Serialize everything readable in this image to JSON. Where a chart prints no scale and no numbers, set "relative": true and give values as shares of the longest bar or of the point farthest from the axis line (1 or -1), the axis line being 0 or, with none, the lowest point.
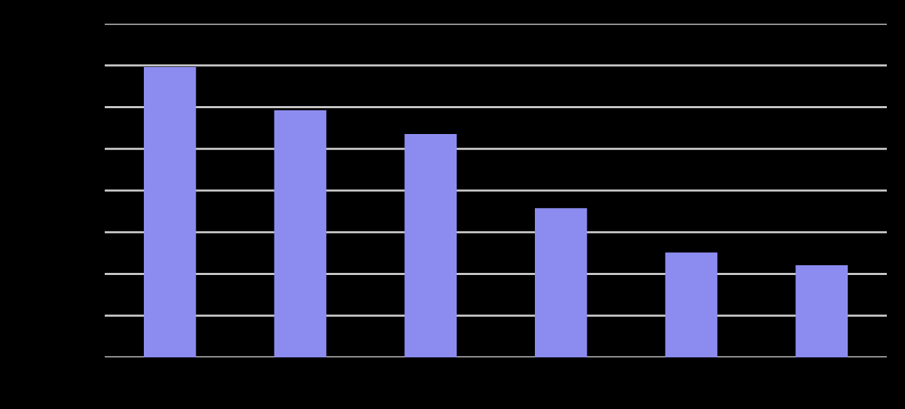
{
  "chart_data": {
    "type": "bar",
    "relative": true,
    "categories": [
      null,
      null,
      null,
      null,
      null,
      null
    ],
    "values": [
      1,
      0.851,
      0.769,
      0.514,
      0.361,
      0.317
    ],
    "color": "#8c8cf0",
    "grid": true
  }
}
